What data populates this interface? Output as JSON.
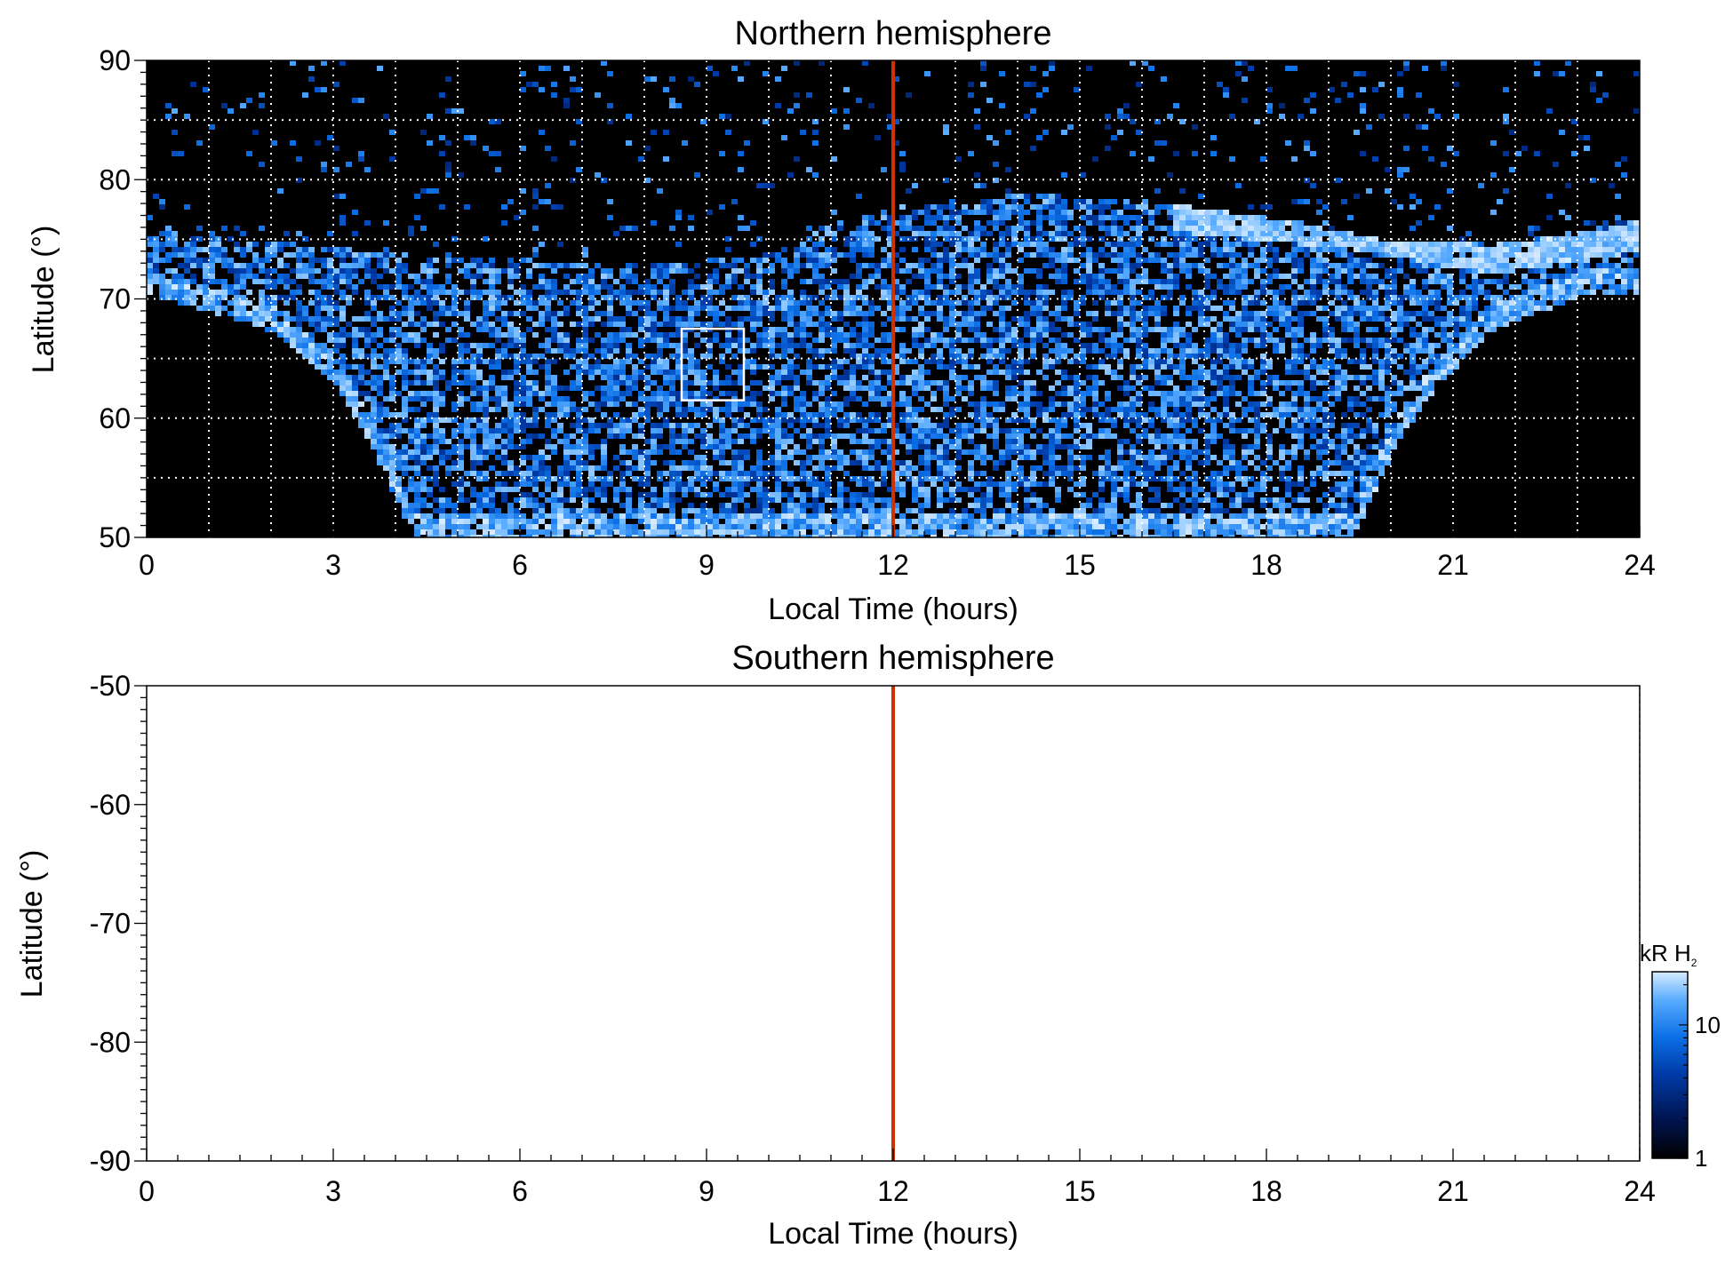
{
  "colors": {
    "background_map": "#000000",
    "noon_line": "#cc3300",
    "grid": "#ffffff",
    "colorscale": [
      "#000000",
      "#00134d",
      "#003aa6",
      "#0b6fe6",
      "#59acff",
      "#d8ecff"
    ]
  },
  "chart_data": [
    {
      "type": "heatmap",
      "name": "northern",
      "title": "Northern hemisphere",
      "xlabel": "Local Time (hours)",
      "ylabel": "Latitude (°)",
      "xlim": [
        0,
        24
      ],
      "ylim": [
        50,
        90
      ],
      "xticks": [
        0,
        3,
        6,
        9,
        12,
        15,
        18,
        21,
        24
      ],
      "xtick_labels": [
        "0",
        "3",
        "6",
        "9",
        "12",
        "15",
        "18",
        "21",
        "24"
      ],
      "yticks": [
        50,
        60,
        70,
        80,
        90
      ],
      "ytick_labels": [
        "50",
        "60",
        "70",
        "80",
        "90"
      ],
      "grid": true,
      "grid_x": [
        1,
        2,
        3,
        4,
        5,
        6,
        7,
        8,
        9,
        10,
        11,
        13,
        14,
        15,
        16,
        17,
        18,
        19,
        20,
        21,
        22,
        23
      ],
      "grid_y": [
        55,
        60,
        65,
        70,
        75,
        80,
        85
      ],
      "noon_line_x": 12,
      "coverage_boundary": [
        [
          0,
          70.5
        ],
        [
          2,
          67.5
        ],
        [
          3,
          63
        ],
        [
          3.5,
          58.5
        ],
        [
          4,
          53
        ],
        [
          4.3,
          50
        ],
        [
          19.3,
          50
        ],
        [
          19.6,
          53
        ],
        [
          20.1,
          58.5
        ],
        [
          20.7,
          63
        ],
        [
          21.6,
          67.5
        ],
        [
          23,
          70.5
        ],
        [
          24,
          70.5
        ]
      ],
      "high_latitude_emission_edge": [
        [
          0,
          76
        ],
        [
          4,
          74
        ],
        [
          6,
          73.5
        ],
        [
          8,
          73
        ],
        [
          10,
          74
        ],
        [
          11,
          76.5
        ],
        [
          12,
          78
        ],
        [
          14,
          79
        ],
        [
          16,
          78.5
        ],
        [
          18,
          77
        ],
        [
          20,
          75
        ],
        [
          22,
          75
        ],
        [
          24,
          77
        ]
      ],
      "bright_arc": [
        [
          16.5,
          77
        ],
        [
          17.5,
          76.5
        ],
        [
          18.5,
          76
        ],
        [
          19.5,
          75.5
        ],
        [
          20.5,
          74.5
        ],
        [
          21.5,
          73.5
        ],
        [
          23,
          74.5
        ],
        [
          24,
          75.5
        ]
      ],
      "highlight_box": {
        "x": [
          8.6,
          9.6
        ],
        "y": [
          61.5,
          67.5
        ]
      },
      "colorbar": {
        "label": "kR H",
        "label_subscript": "2",
        "scale": "log",
        "range": [
          1,
          25
        ],
        "ticks": [
          1,
          10
        ],
        "tick_labels": [
          "1",
          "10"
        ]
      }
    },
    {
      "type": "heatmap",
      "name": "southern",
      "title": "Southern hemisphere",
      "xlabel": "Local Time (hours)",
      "ylabel": "Latitude (°)",
      "xlim": [
        0,
        24
      ],
      "ylim": [
        -90,
        -50
      ],
      "xticks": [
        0,
        3,
        6,
        9,
        12,
        15,
        18,
        21,
        24
      ],
      "xtick_labels": [
        "0",
        "3",
        "6",
        "9",
        "12",
        "15",
        "18",
        "21",
        "24"
      ],
      "yticks": [
        -90,
        -80,
        -70,
        -60,
        -50
      ],
      "ytick_labels": [
        "-90",
        "-80",
        "-70",
        "-60",
        "-50"
      ],
      "grid": false,
      "noon_line_x": 12,
      "data_present": false
    }
  ]
}
